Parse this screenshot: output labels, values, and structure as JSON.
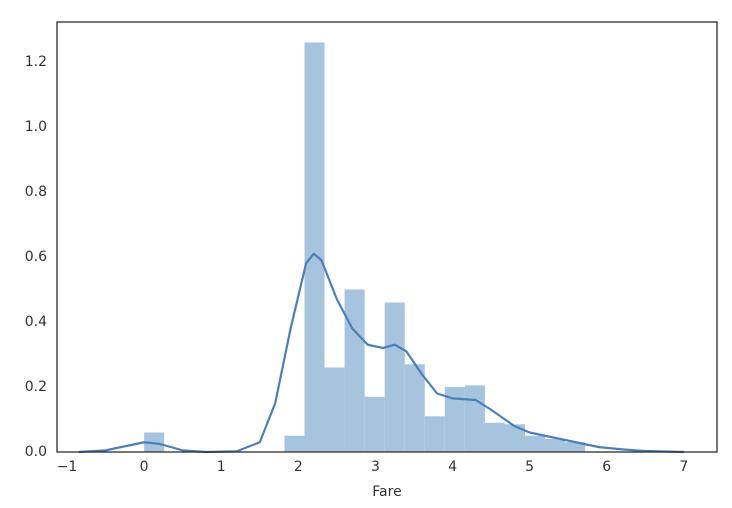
{
  "chart_data": {
    "type": "hist",
    "xlabel": "Fare",
    "bins": [
      0,
      0.26,
      0.52,
      0.78,
      1.04,
      1.3,
      1.56,
      1.82,
      2.08,
      2.34,
      2.6,
      2.86,
      3.12,
      3.38,
      3.64,
      3.9,
      4.16,
      4.42,
      4.68,
      4.94,
      5.2,
      5.46,
      5.72
    ],
    "counts": [
      0.06,
      0,
      0,
      0,
      0,
      0,
      0,
      0.05,
      1.26,
      0.26,
      0.5,
      0.17,
      0.46,
      0.27,
      0.11,
      0.2,
      0.205,
      0.09,
      0.085,
      0.05,
      0.04,
      0.03
    ],
    "color": "#a6c4de",
    "kde": {
      "color": "#4c7fb8",
      "x": [
        -0.85,
        -0.5,
        -0.2,
        0,
        0.2,
        0.5,
        0.8,
        1.2,
        1.5,
        1.7,
        1.9,
        2.1,
        2.2,
        2.3,
        2.5,
        2.7,
        2.9,
        3.1,
        3.25,
        3.4,
        3.6,
        3.8,
        4.0,
        4.3,
        4.5,
        4.8,
        5.0,
        5.3,
        5.6,
        5.9,
        6.2,
        6.5,
        7.0
      ],
      "y": [
        0,
        0.005,
        0.02,
        0.03,
        0.025,
        0.005,
        0,
        0.002,
        0.03,
        0.15,
        0.38,
        0.58,
        0.61,
        0.59,
        0.47,
        0.38,
        0.33,
        0.32,
        0.33,
        0.31,
        0.24,
        0.18,
        0.165,
        0.16,
        0.13,
        0.08,
        0.06,
        0.045,
        0.03,
        0.015,
        0.008,
        0.003,
        0
      ]
    },
    "xlim": [
      -1.13,
      7.43
    ],
    "ylim": [
      0,
      1.323
    ],
    "xticks": [
      {
        "value": -1,
        "label": "−1"
      },
      0,
      1,
      2,
      3,
      4,
      5,
      6,
      7
    ],
    "yticks": [
      {
        "value": 0,
        "label": "0.0"
      },
      0.2,
      0.4,
      0.6,
      0.8,
      {
        "value": 1,
        "label": "1.0"
      },
      1.2
    ],
    "grid": false
  }
}
